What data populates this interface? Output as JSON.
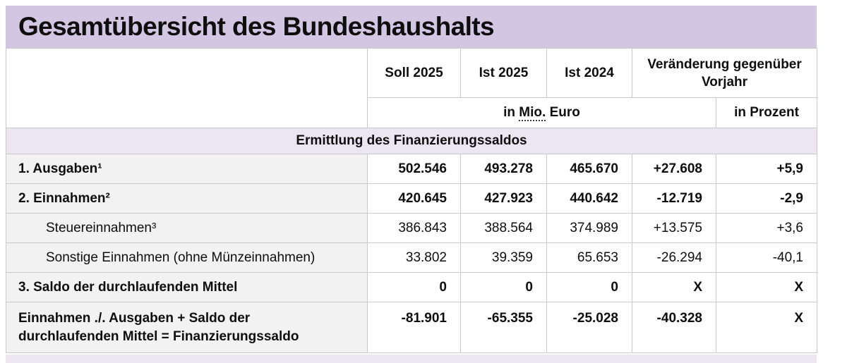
{
  "title": "Gesamtübersicht des Bundeshaushalts",
  "table": {
    "col_headers": [
      "Soll 2025",
      "Ist 2025",
      "Ist 2024",
      "Veränderung gegenüber Vorjahr"
    ],
    "unit_row": {
      "mio_prefix": "in ",
      "mio_abbr": "Mio.",
      "mio_suffix": " Euro",
      "prozent": "in Prozent"
    },
    "section": "Ermittlung des Finanzierungssaldos",
    "rows": [
      {
        "label": "1. Ausgaben¹",
        "bold": true,
        "indent": false,
        "tall": false,
        "values": [
          "502.546",
          "493.278",
          "465.670",
          "+27.608",
          "+5,9"
        ]
      },
      {
        "label": "2. Einnahmen²",
        "bold": true,
        "indent": false,
        "tall": false,
        "values": [
          "420.645",
          "427.923",
          "440.642",
          "-12.719",
          "-2,9"
        ]
      },
      {
        "label": "Steuereinnahmen³",
        "bold": false,
        "indent": true,
        "tall": false,
        "values": [
          "386.843",
          "388.564",
          "374.989",
          "+13.575",
          "+3,6"
        ]
      },
      {
        "label": "Sonstige Einnahmen (ohne Münzeinnahmen)",
        "bold": false,
        "indent": true,
        "tall": false,
        "values": [
          "33.802",
          "39.359",
          "65.653",
          "-26.294",
          "-40,1"
        ]
      },
      {
        "label": "3. Saldo der durchlaufenden Mittel",
        "bold": true,
        "indent": false,
        "tall": false,
        "values": [
          "0",
          "0",
          "0",
          "X",
          "X"
        ]
      },
      {
        "label": "Einnahmen ./. Ausgaben + Saldo der durchlaufenden Mittel = Finanzierungssaldo",
        "bold": true,
        "indent": false,
        "tall": true,
        "values": [
          "-81.901",
          "-65.355",
          "-25.028",
          "-40.328",
          "X"
        ]
      }
    ]
  },
  "colors": {
    "title_bar_bg": "#d3c6e3",
    "section_row_bg": "#ece6f3",
    "label_cell_bg": "#f2f2f2",
    "border": "#c9c9c9",
    "text": "#0e0e0e"
  }
}
